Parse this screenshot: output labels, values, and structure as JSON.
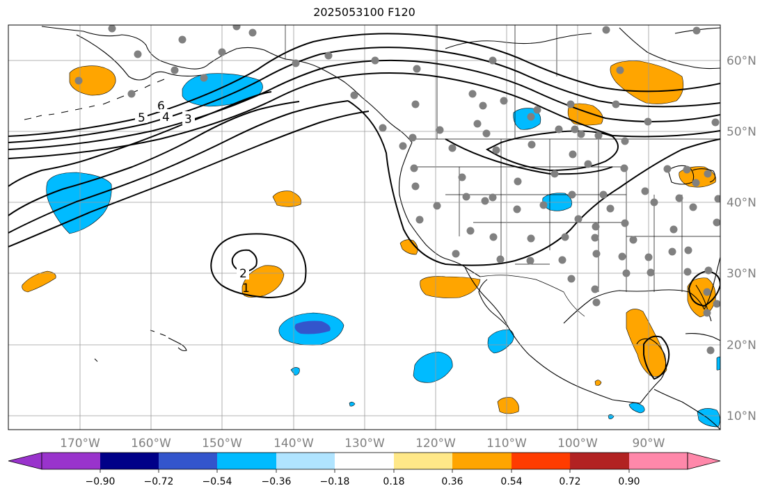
{
  "title": "2025053100 F120",
  "map": {
    "lon_labels": [
      "170°W",
      "160°W",
      "150°W",
      "140°W",
      "130°W",
      "120°W",
      "110°W",
      "100°W",
      "90°W"
    ],
    "lat_labels": [
      "60°N",
      "50°N",
      "40°N",
      "30°N",
      "20°N",
      "10°N"
    ],
    "contour_labels": [
      "6",
      "5",
      "4",
      "3",
      "2",
      "1"
    ],
    "grid": true,
    "line_color": "#000000",
    "grid_color": "#9a9a9a",
    "station_dot_color": "#808080"
  },
  "colorbar": {
    "tick_labels": [
      "−0.90",
      "−0.72",
      "−0.54",
      "−0.36",
      "−0.18",
      "0.18",
      "0.36",
      "0.54",
      "0.72",
      "0.90"
    ],
    "colors": [
      "#9933cc",
      "#000088",
      "#3355cc",
      "#00bbff",
      "#b0e4ff",
      "#ffffff",
      "#ffe888",
      "#ffa500",
      "#ff3c00",
      "#b22222",
      "#ff88aa"
    ],
    "extend": "both"
  }
}
